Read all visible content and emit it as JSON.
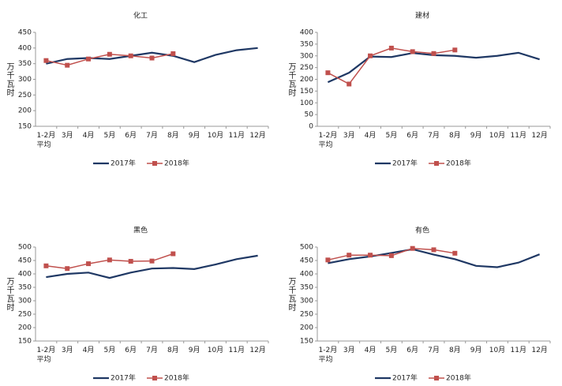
{
  "chart_data": [
    {
      "type": "line",
      "title": "化工",
      "y_label": "万千瓦时",
      "categories": [
        "1-2月\n平均",
        "3月",
        "4月",
        "5月",
        "6月",
        "7月",
        "8月",
        "9月",
        "10月",
        "11月",
        "12月"
      ],
      "series": [
        {
          "name": "2017年",
          "color": "#1f3864",
          "values": [
            350,
            365,
            368,
            365,
            375,
            385,
            375,
            355,
            378,
            393,
            400
          ]
        },
        {
          "name": "2018年",
          "color": "#c0504d",
          "marker": "square",
          "values": [
            360,
            345,
            365,
            380,
            375,
            368,
            382,
            null,
            null,
            null,
            null
          ]
        }
      ],
      "ylim": [
        150,
        450
      ],
      "yticks": [
        150,
        200,
        250,
        300,
        350,
        400,
        450
      ],
      "legend": "bottom"
    },
    {
      "type": "line",
      "title": "建材",
      "y_label": "万千瓦时",
      "categories": [
        "1-2月\n平均",
        "3月",
        "4月",
        "5月",
        "6月",
        "7月",
        "8月",
        "9月",
        "10月",
        "11月",
        "12月"
      ],
      "series": [
        {
          "name": "2017年",
          "color": "#1f3864",
          "values": [
            188,
            228,
            297,
            295,
            312,
            303,
            300,
            292,
            300,
            313,
            285
          ]
        },
        {
          "name": "2018年",
          "color": "#c0504d",
          "marker": "square",
          "values": [
            228,
            180,
            300,
            333,
            318,
            310,
            325,
            null,
            null,
            null,
            null
          ]
        }
      ],
      "ylim": [
        0,
        400
      ],
      "yticks": [
        0,
        50,
        100,
        150,
        200,
        250,
        300,
        350,
        400
      ],
      "legend": "bottom"
    },
    {
      "type": "line",
      "title": "黑色",
      "y_label": "万千瓦时",
      "categories": [
        "1-2月\n平均",
        "3月",
        "4月",
        "5月",
        "6月",
        "7月",
        "8月",
        "9月",
        "10月",
        "11月",
        "12月"
      ],
      "series": [
        {
          "name": "2017年",
          "color": "#1f3864",
          "values": [
            388,
            400,
            405,
            385,
            405,
            420,
            422,
            418,
            435,
            455,
            468
          ]
        },
        {
          "name": "2018年",
          "color": "#c0504d",
          "marker": "square",
          "values": [
            430,
            420,
            438,
            452,
            447,
            448,
            475,
            null,
            null,
            null,
            null
          ]
        }
      ],
      "ylim": [
        150,
        500
      ],
      "yticks": [
        150,
        200,
        250,
        300,
        350,
        400,
        450,
        500
      ],
      "legend": "bottom"
    },
    {
      "type": "line",
      "title": "有色",
      "y_label": "万千瓦时",
      "categories": [
        "1-2月\n平均",
        "3月",
        "4月",
        "5月",
        "6月",
        "7月",
        "8月",
        "9月",
        "10月",
        "11月",
        "12月"
      ],
      "series": [
        {
          "name": "2017年",
          "color": "#1f3864",
          "values": [
            440,
            455,
            465,
            478,
            492,
            472,
            455,
            430,
            425,
            442,
            473
          ]
        },
        {
          "name": "2018年",
          "color": "#c0504d",
          "marker": "square",
          "values": [
            452,
            470,
            470,
            468,
            495,
            490,
            477,
            null,
            null,
            null,
            null
          ]
        }
      ],
      "ylim": [
        150,
        500
      ],
      "yticks": [
        150,
        200,
        250,
        300,
        350,
        400,
        450,
        500
      ],
      "legend": "bottom"
    }
  ]
}
